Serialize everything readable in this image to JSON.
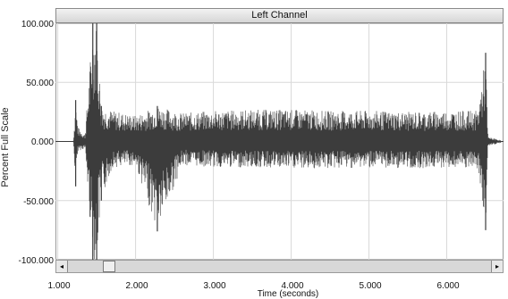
{
  "chart_title": "Left Channel",
  "y_axis_label": "Percent Full Scale",
  "x_axis_label": "Time (seconds)",
  "y_ticks": [
    "100.000",
    "50.000",
    "0.000",
    "-50.000",
    "-100.000"
  ],
  "x_ticks": [
    "1.000",
    "2.000",
    "3.000",
    "4.000",
    "5.000",
    "6.000"
  ],
  "scrollbar": {
    "left_arrow": "◂",
    "right_arrow": "▸"
  },
  "colors": {
    "waveform": "#3c3c3c",
    "grid": "#d9d9d9",
    "plot_border": "#9a9a9a"
  },
  "chart_data": {
    "type": "line",
    "title": "Left Channel",
    "xlabel": "Time (seconds)",
    "ylabel": "Percent Full Scale",
    "xlim": [
      0.97,
      6.73
    ],
    "ylim": [
      -100,
      100
    ],
    "grid": true,
    "series": [
      {
        "envelope": [
          {
            "t": 1.2,
            "max": 1,
            "min": -1
          },
          {
            "t": 1.23,
            "max": 35,
            "min": -38
          },
          {
            "t": 1.26,
            "max": 12,
            "min": -8
          },
          {
            "t": 1.35,
            "max": 6,
            "min": -6
          },
          {
            "t": 1.45,
            "max": 100,
            "min": -100
          },
          {
            "t": 1.5,
            "max": 100,
            "min": -100
          },
          {
            "t": 1.56,
            "max": 30,
            "min": -50
          },
          {
            "t": 1.7,
            "max": 26,
            "min": -22
          },
          {
            "t": 2.0,
            "max": 22,
            "min": -20
          },
          {
            "t": 2.28,
            "max": 30,
            "min": -76
          },
          {
            "t": 2.6,
            "max": 24,
            "min": -20
          },
          {
            "t": 3.0,
            "max": 26,
            "min": -22
          },
          {
            "t": 3.5,
            "max": 27,
            "min": -22
          },
          {
            "t": 4.0,
            "max": 27,
            "min": -23
          },
          {
            "t": 4.5,
            "max": 26,
            "min": -23
          },
          {
            "t": 5.0,
            "max": 26,
            "min": -22
          },
          {
            "t": 5.5,
            "max": 25,
            "min": -23
          },
          {
            "t": 6.0,
            "max": 26,
            "min": -22
          },
          {
            "t": 6.4,
            "max": 26,
            "min": -24
          },
          {
            "t": 6.5,
            "max": 75,
            "min": -75
          },
          {
            "t": 6.53,
            "max": 4,
            "min": -4
          },
          {
            "t": 6.7,
            "max": 1,
            "min": -1
          }
        ]
      }
    ]
  }
}
